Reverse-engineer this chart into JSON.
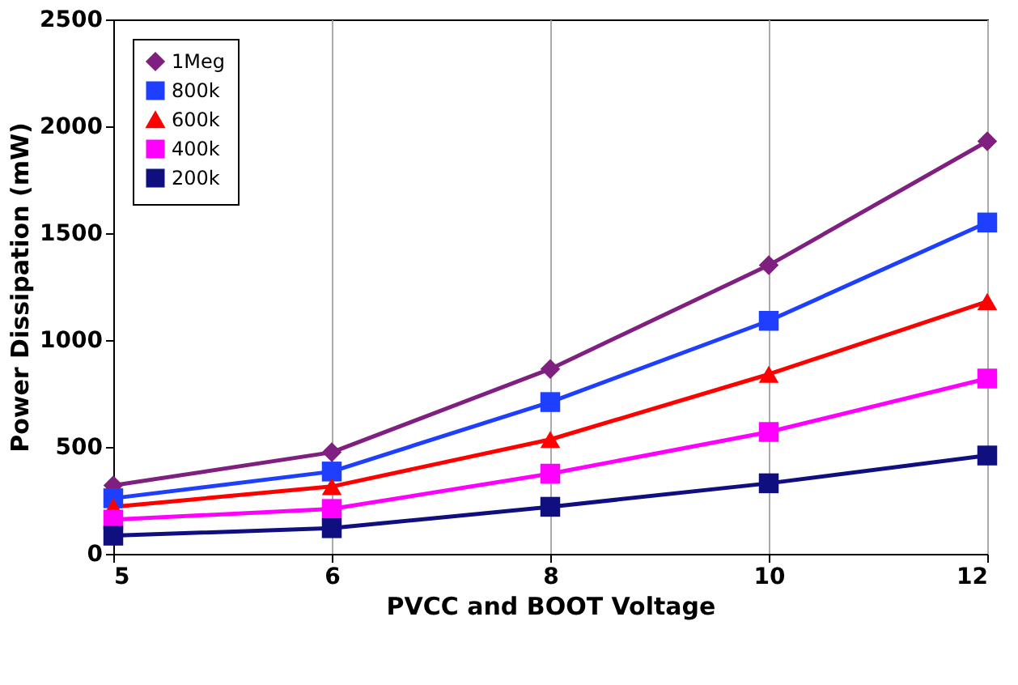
{
  "chart_data": {
    "type": "line",
    "xlabel": "PVCC and BOOT Voltage",
    "ylabel": "Power Dissipation (mW)",
    "categories": [
      "5",
      "6",
      "8",
      "10",
      "12"
    ],
    "ylim": [
      0,
      2500
    ],
    "yticks": [
      0,
      500,
      1000,
      1500,
      2000,
      2500
    ],
    "grid": "x",
    "legend": "top left",
    "line_style": "solid",
    "series": [
      {
        "name": "1Meg",
        "color": "#7f1f7f",
        "marker": "diamond",
        "values": [
          320,
          475,
          865,
          1350,
          1930
        ]
      },
      {
        "name": "800k",
        "color": "#1f3fff",
        "marker": "square",
        "values": [
          260,
          385,
          710,
          1090,
          1550
        ]
      },
      {
        "name": "600k",
        "color": "#ff0000",
        "marker": "triangle",
        "values": [
          220,
          315,
          535,
          840,
          1180
        ]
      },
      {
        "name": "400k",
        "color": "#ff00ff",
        "marker": "square",
        "values": [
          160,
          210,
          375,
          570,
          820
        ]
      },
      {
        "name": "200k",
        "color": "#0f0f7f",
        "marker": "square",
        "values": [
          85,
          120,
          220,
          330,
          460
        ]
      }
    ]
  }
}
